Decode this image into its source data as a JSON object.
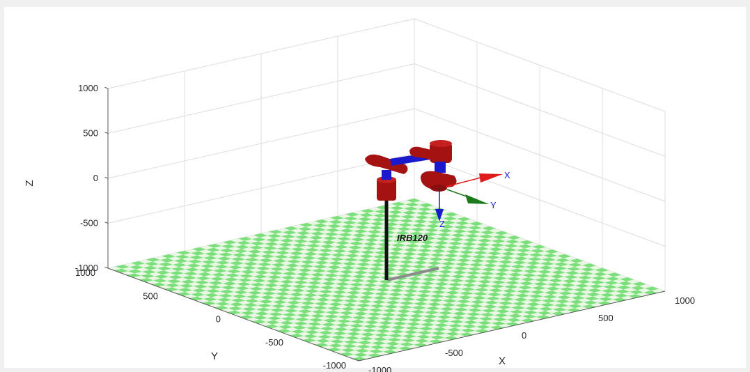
{
  "chart_data": {
    "type": "scatter",
    "view": "3d",
    "xlabel": "X",
    "ylabel": "Y",
    "zlabel": "Z",
    "xlim": [
      -1000,
      1000
    ],
    "ylim": [
      -1000,
      1000
    ],
    "zlim": [
      -1000,
      1000
    ],
    "xticks": [
      "-1000",
      "-500",
      "0",
      "500",
      "1000"
    ],
    "yticks": [
      "-1000",
      "-500",
      "0",
      "500",
      "1000"
    ],
    "zticks": [
      "-1000",
      "-500",
      "0",
      "500",
      "1000"
    ],
    "grid": true,
    "floor": "checkerboard",
    "robot_label": "IRB120",
    "tool_frame_labels": {
      "x": "X",
      "y": "Y",
      "z": "Z"
    },
    "colors": {
      "figure_background": "#f0f0f0",
      "axes_background": "#ffffff",
      "grid": "#dcdcdc",
      "floor_green": "#7be07b",
      "floor_light": "#e9f7e4",
      "robot_link": "#a51212",
      "robot_joint": "#1a1acc",
      "pedestal": "#111111",
      "shadow": "#8c8c8c",
      "frame_x": "#e01b1b",
      "frame_y": "#1b7a1b",
      "frame_z": "#1a1acc",
      "frame_label": "#1f1fd6"
    }
  }
}
